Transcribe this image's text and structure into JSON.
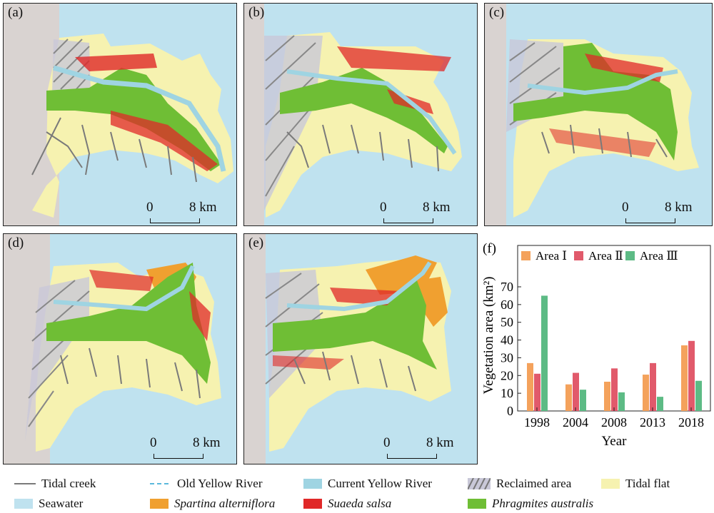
{
  "panels": [
    {
      "label": "(a)",
      "scale_start": "0",
      "scale_end": "8 km"
    },
    {
      "label": "(b)",
      "scale_start": "0",
      "scale_end": "8 km"
    },
    {
      "label": "(c)",
      "scale_start": "0",
      "scale_end": "8 km"
    },
    {
      "label": "(d)",
      "scale_start": "0",
      "scale_end": "8 km"
    },
    {
      "label": "(e)",
      "scale_start": "0",
      "scale_end": "8 km"
    }
  ],
  "colors": {
    "seawater": "#bfe2ef",
    "land": "#d9d3d1",
    "tidal_flat": "#f6f2b0",
    "current_river": "#9fd4e2",
    "tidal_creek": "#7a7a7a",
    "spartina": "#f0a030",
    "suaeda": "#e02828",
    "phragmites": "#6fbe35",
    "area1": "#f4a25c",
    "area2": "#e15a6b",
    "area3": "#5dbb85"
  },
  "legend": [
    {
      "name": "tidal-creek",
      "label": "Tidal creek",
      "italic": false
    },
    {
      "name": "old-yellow-river",
      "label": "Old Yellow River",
      "italic": false
    },
    {
      "name": "current-yellow-river",
      "label": "Current Yellow River",
      "italic": false
    },
    {
      "name": "reclaimed-area",
      "label": "Reclaimed area",
      "italic": false
    },
    {
      "name": "tidal-flat",
      "label": "Tidal flat",
      "italic": false
    },
    {
      "name": "seawater",
      "label": "Seawater",
      "italic": false
    },
    {
      "name": "spartina",
      "label": "Spartina alterniflora",
      "italic": true
    },
    {
      "name": "suaeda",
      "label": "Suaeda salsa",
      "italic": true
    },
    {
      "name": "phragmites",
      "label": "Phragmites australis",
      "italic": true
    }
  ],
  "chart_data": {
    "type": "bar",
    "panel_label": "(f)",
    "categories": [
      "1998",
      "2004",
      "2008",
      "2013",
      "2018"
    ],
    "series": [
      {
        "name": "Area Ⅰ",
        "values": [
          27,
          15,
          16.5,
          20.5,
          37
        ]
      },
      {
        "name": "Area Ⅱ",
        "values": [
          21,
          21.5,
          24,
          27,
          39.5
        ]
      },
      {
        "name": "Area Ⅲ",
        "values": [
          65,
          12,
          10.5,
          8,
          17
        ]
      }
    ],
    "xlabel": "Year",
    "ylabel": "Vegetation area (km²)",
    "ylim": [
      0,
      70
    ],
    "yticks": [
      0,
      10,
      20,
      30,
      40,
      50,
      60,
      70
    ],
    "legend_position": "top",
    "grid": false
  }
}
